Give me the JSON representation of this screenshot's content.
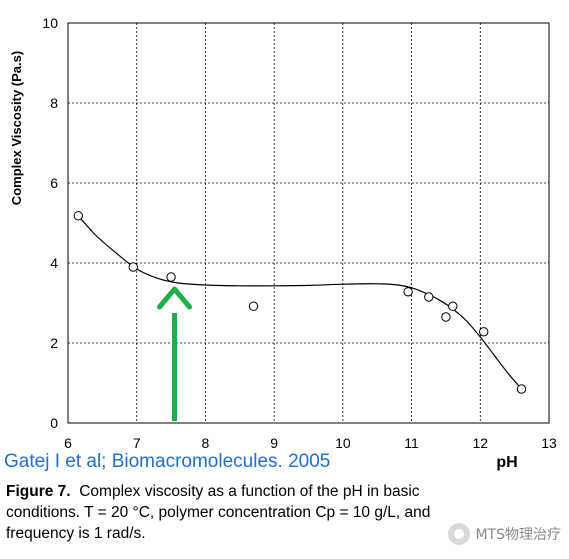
{
  "chart_data": {
    "type": "scatter",
    "ylabel": "Complex Viscosity (Pa.s)",
    "xlabel": "pH",
    "xlim": [
      6,
      13
    ],
    "ylim": [
      0,
      10
    ],
    "x_ticks": [
      "6",
      "7",
      "8",
      "9",
      "10",
      "11",
      "12",
      "13"
    ],
    "y_ticks": [
      "0",
      "2",
      "4",
      "6",
      "8",
      "10"
    ],
    "grid": true,
    "series": [
      {
        "x": [
          6.15,
          6.95,
          7.5,
          8.7,
          10.95,
          11.25,
          11.5,
          11.6,
          12.05,
          12.6
        ],
        "y": [
          5.18,
          3.9,
          3.65,
          2.92,
          3.28,
          3.15,
          2.65,
          2.92,
          2.28,
          0.85
        ]
      }
    ],
    "fit_curve": {
      "x": [
        6.15,
        6.4,
        6.7,
        7.0,
        7.3,
        7.6,
        8.0,
        8.5,
        9.0,
        9.5,
        10.0,
        10.5,
        10.8,
        11.0,
        11.2,
        11.4,
        11.6,
        11.8,
        12.0,
        12.2,
        12.4,
        12.6
      ],
      "y": [
        5.18,
        4.7,
        4.25,
        3.85,
        3.62,
        3.5,
        3.45,
        3.43,
        3.43,
        3.44,
        3.47,
        3.48,
        3.45,
        3.38,
        3.25,
        3.08,
        2.85,
        2.55,
        2.15,
        1.7,
        1.25,
        0.85
      ]
    },
    "arrow": {
      "x": 7.55,
      "y_tail": 0,
      "y_head": 3.45,
      "color": "#1fae4b"
    }
  },
  "citation": "Gatej I et al; Biomacromolecules. 2005",
  "caption": {
    "fig_label": "Figure 7.",
    "line1": "Complex viscosity as a function of the pH in basic",
    "line2": "conditions. T = 20 °C, polymer concentration Cp = 10 g/L, and",
    "line3": "frequency is 1 rad/s."
  },
  "watermark": "MTS物理治疗"
}
